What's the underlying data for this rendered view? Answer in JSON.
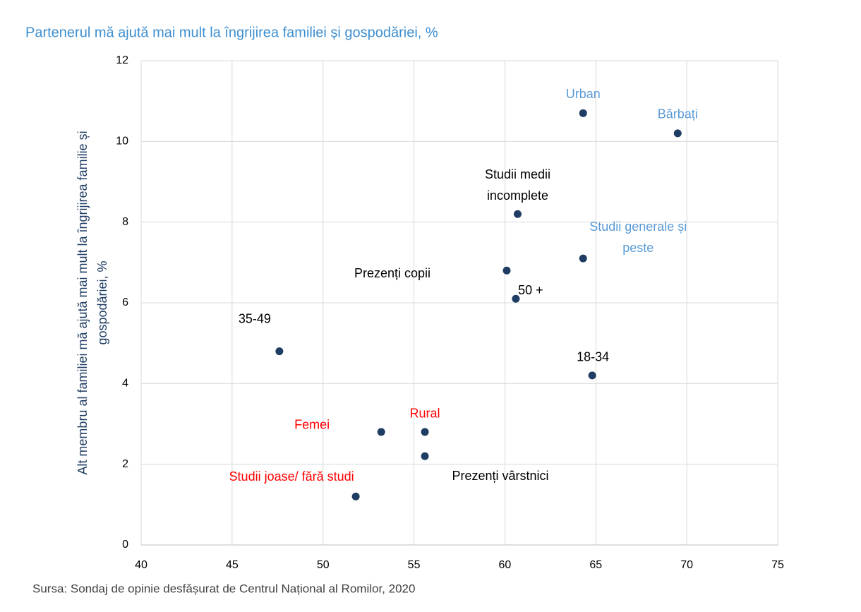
{
  "chart_data": {
    "type": "scatter",
    "title": "Partenerul mă ajută mai mult la îngrijirea familiei și gospodăriei, %",
    "y_label": [
      "Alt membru al familiei mă ajută mai mult la îngrijirea familie și",
      "gospodăriei, %"
    ],
    "source": "Sursa: Sondaj de opinie desfășurat de Centrul Național al Romilor, 2020",
    "point_color": "#1f3d63",
    "x": [
      64.3,
      69.5,
      60.7,
      64.3,
      60.1,
      60.6,
      47.6,
      64.8,
      53.2,
      55.6,
      55.6,
      51.8
    ],
    "values": [
      10.7,
      10.2,
      8.2,
      7.1,
      6.8,
      6.1,
      4.8,
      4.2,
      2.8,
      2.8,
      2.2,
      1.2
    ],
    "labels": [
      [
        "Urban"
      ],
      [
        "Bărbați"
      ],
      [
        "Studii medii",
        "incomplete"
      ],
      [
        "Studii generale și",
        "peste"
      ],
      [
        "Prezenți copii"
      ],
      [
        "50 +"
      ],
      [
        "35-49"
      ],
      [
        "18-34"
      ],
      [
        "Femei"
      ],
      [
        "Rural"
      ],
      [
        "Prezenți vârstnici"
      ],
      [
        "Studii joase/ fără studi"
      ]
    ],
    "label_colors": [
      "#5b9bd5",
      "#5b9bd5",
      "#000000",
      "#5b9bd5",
      "#000000",
      "#000000",
      "#000000",
      "#000000",
      "#ff0000",
      "#ff0000",
      "#000000",
      "#ff0000"
    ],
    "xlim": [
      40,
      75
    ],
    "xticks": [
      40,
      45,
      50,
      55,
      60,
      65,
      70,
      75
    ],
    "ylim": [
      0,
      12
    ],
    "yticks": [
      0,
      2,
      4,
      6,
      8,
      10,
      12
    ],
    "grid": true
  }
}
